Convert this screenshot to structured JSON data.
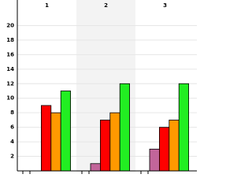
{
  "chart_data": {
    "type": "bar",
    "categories": [
      "1",
      "2",
      "3"
    ],
    "series": [
      {
        "color": "#c2659a",
        "values": [
          0,
          1,
          3
        ]
      },
      {
        "color": "#ff0000",
        "values": [
          9,
          7,
          6
        ]
      },
      {
        "color": "#ff9900",
        "values": [
          8,
          8,
          7
        ]
      },
      {
        "color": "#22ee22",
        "values": [
          11,
          12,
          12
        ]
      }
    ],
    "ylim": [
      0,
      22
    ],
    "yticks": [
      2,
      4,
      6,
      8,
      10,
      12,
      14,
      16,
      18,
      20
    ],
    "grid": true
  }
}
